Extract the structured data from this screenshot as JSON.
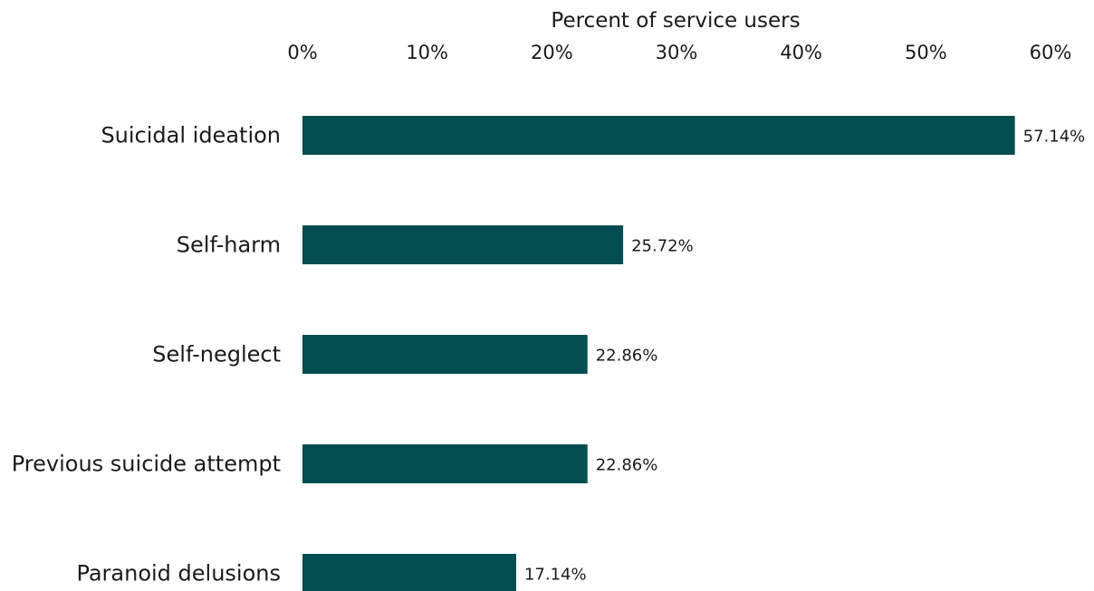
{
  "chart_data": {
    "type": "bar",
    "orientation": "horizontal",
    "xlabel": "Percent of service users",
    "xlabel_position": "top",
    "xlim": [
      0,
      60
    ],
    "xticks": [
      0,
      10,
      20,
      30,
      40,
      50,
      60
    ],
    "xtick_labels": [
      "0%",
      "10%",
      "20%",
      "30%",
      "40%",
      "50%",
      "60%"
    ],
    "grid": false,
    "bar_color": "#034C4F",
    "categories": [
      "Suicidal ideation",
      "Self-harm",
      "Self-neglect",
      "Previous suicide attempt",
      "Paranoid delusions"
    ],
    "values": [
      57.14,
      25.72,
      22.86,
      22.86,
      17.14
    ],
    "value_labels": [
      "57.14%",
      "25.72%",
      "22.86%",
      "22.86%",
      "17.14%"
    ]
  }
}
